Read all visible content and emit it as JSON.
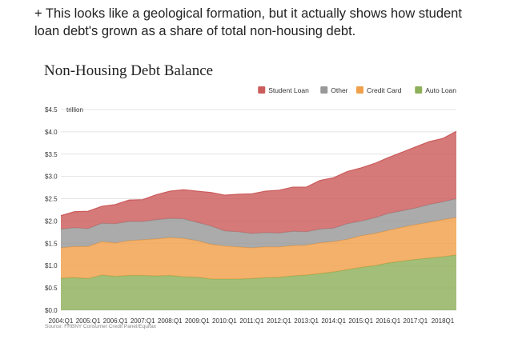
{
  "caption": "+ This looks like a geological formation, but it actually shows how student loan debt's grown as a share of total non-housing debt.",
  "chart_data": {
    "type": "area",
    "stacked": true,
    "title": "Non-Housing Debt Balance",
    "ylabel": "",
    "y_unit": "trillion",
    "ylim": [
      0,
      4.5
    ],
    "y_ticks": [
      "$0.0",
      "$0.5",
      "$1.0",
      "$1.5",
      "$2.0",
      "$2.5",
      "$3.0",
      "$3.5",
      "$4.0",
      "$4.5"
    ],
    "x_tick_labels": [
      "2004:Q1",
      "2005:Q1",
      "2006:Q1",
      "2007:Q1",
      "2008:Q1",
      "2009:Q1",
      "2010:Q1",
      "2011:Q1",
      "2012:Q1",
      "2013:Q1",
      "2014:Q1",
      "2015:Q1",
      "2016:Q1",
      "2017:Q1",
      "2018Q1"
    ],
    "x_start_year": 2004,
    "x_end_year": 2018.5,
    "grid": true,
    "legend_position": "top-right",
    "source": "Source: FRBNY Consumer Credit Panel/Equifax",
    "x": [
      2004.0,
      2004.5,
      2005.0,
      2005.5,
      2006.0,
      2006.5,
      2007.0,
      2007.5,
      2008.0,
      2008.5,
      2009.0,
      2009.5,
      2010.0,
      2010.5,
      2011.0,
      2011.5,
      2012.0,
      2012.5,
      2013.0,
      2013.5,
      2014.0,
      2014.5,
      2015.0,
      2015.5,
      2016.0,
      2016.5,
      2017.0,
      2017.5,
      2018.0,
      2018.5
    ],
    "series": [
      {
        "name": "Auto Loan",
        "color": "#8fb05a",
        "values": [
          0.72,
          0.73,
          0.71,
          0.79,
          0.76,
          0.78,
          0.78,
          0.77,
          0.78,
          0.75,
          0.74,
          0.7,
          0.7,
          0.7,
          0.71,
          0.73,
          0.74,
          0.77,
          0.79,
          0.82,
          0.86,
          0.91,
          0.96,
          1.0,
          1.06,
          1.1,
          1.14,
          1.17,
          1.2,
          1.24
        ]
      },
      {
        "name": "Credit Card",
        "color": "#f0a04a",
        "values": [
          0.68,
          0.7,
          0.72,
          0.75,
          0.75,
          0.78,
          0.8,
          0.83,
          0.85,
          0.86,
          0.82,
          0.78,
          0.74,
          0.72,
          0.69,
          0.69,
          0.68,
          0.68,
          0.67,
          0.69,
          0.68,
          0.68,
          0.71,
          0.72,
          0.73,
          0.76,
          0.78,
          0.8,
          0.83,
          0.84
        ]
      },
      {
        "name": "Other",
        "color": "#999999",
        "values": [
          0.42,
          0.42,
          0.4,
          0.41,
          0.43,
          0.43,
          0.41,
          0.43,
          0.43,
          0.44,
          0.41,
          0.41,
          0.34,
          0.34,
          0.32,
          0.32,
          0.31,
          0.32,
          0.3,
          0.31,
          0.3,
          0.35,
          0.33,
          0.35,
          0.38,
          0.37,
          0.37,
          0.4,
          0.4,
          0.42
        ]
      },
      {
        "name": "Student Loan",
        "color": "#cc5c5c",
        "values": [
          0.3,
          0.36,
          0.39,
          0.38,
          0.43,
          0.48,
          0.49,
          0.56,
          0.61,
          0.65,
          0.7,
          0.75,
          0.8,
          0.84,
          0.89,
          0.93,
          0.96,
          0.99,
          1.0,
          1.09,
          1.13,
          1.17,
          1.19,
          1.22,
          1.25,
          1.31,
          1.37,
          1.41,
          1.42,
          1.51
        ]
      }
    ],
    "legend_order": [
      "Student Loan",
      "Other",
      "Credit Card",
      "Auto Loan"
    ]
  }
}
